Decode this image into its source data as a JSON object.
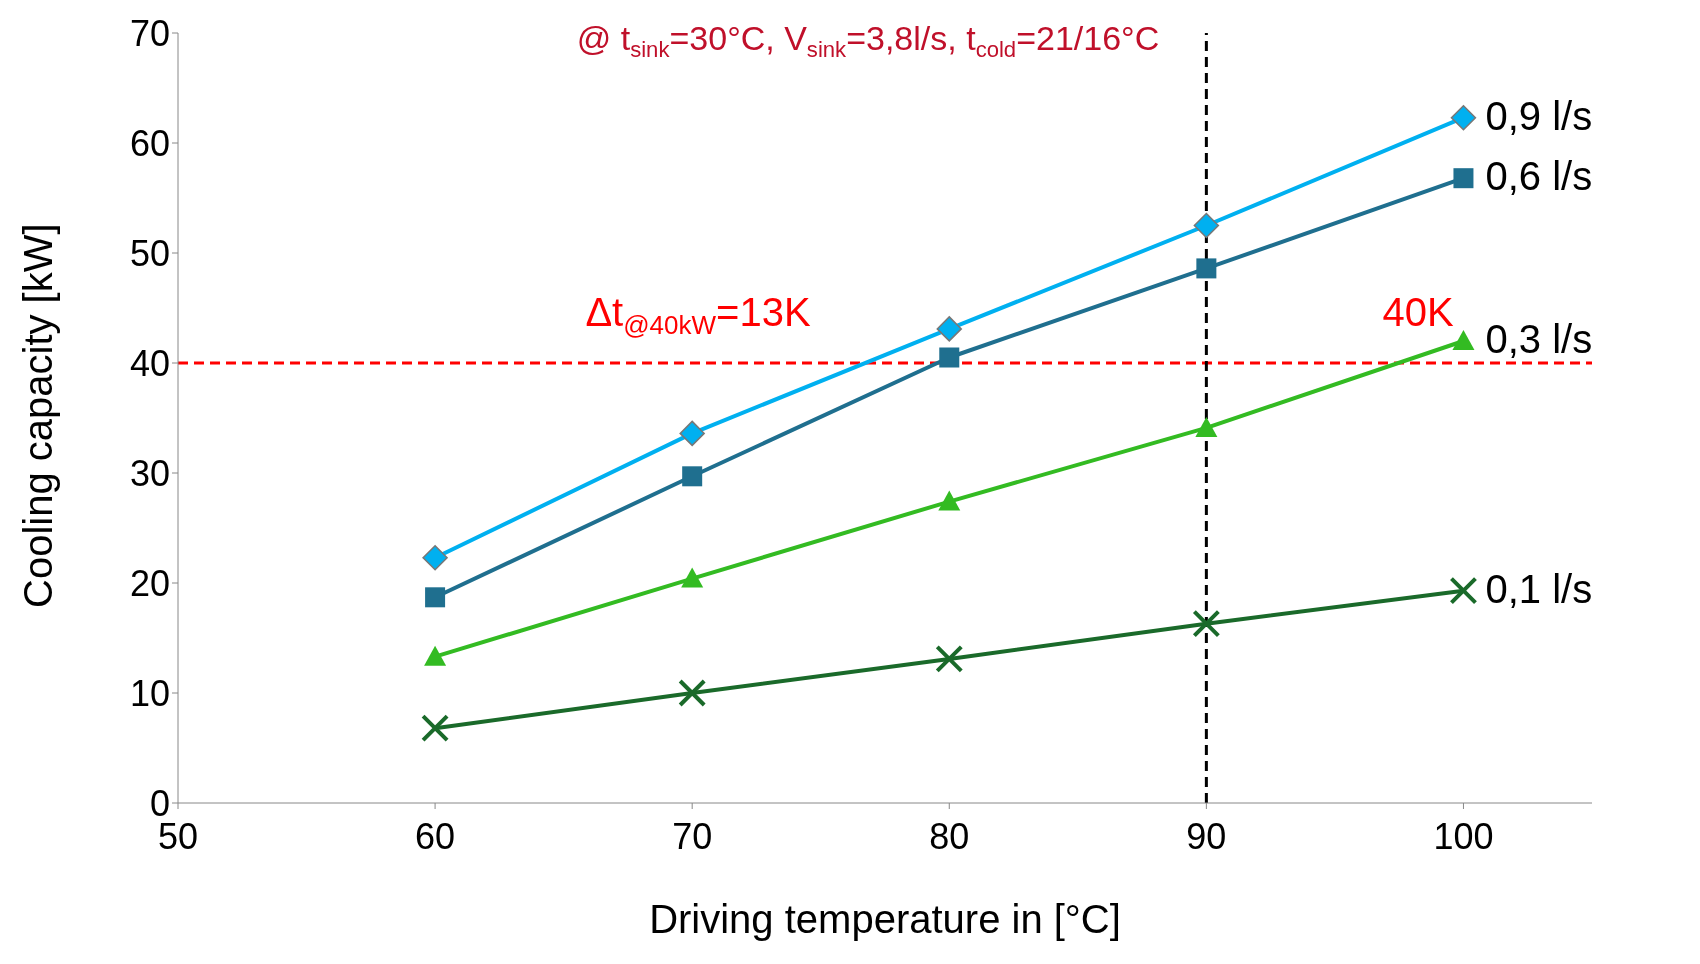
{
  "chart_data": {
    "type": "line",
    "subtitle": "@ t$_{sink}$=30°C, V$_{sink}$=3,8l/s,  t$_{cold}$=21/16°C",
    "xlabel": "Driving temperature in [°C]",
    "ylabel": "Cooling capacity [kW]",
    "x": [
      60,
      70,
      80,
      90,
      100
    ],
    "series": [
      {
        "name": "0,9 l/s",
        "color": "#00b0f0",
        "marker": "diamond",
        "values": [
          22.3,
          33.6,
          43.1,
          52.5,
          62.3
        ]
      },
      {
        "name": "0,6 l/s",
        "color": "#1f6f8f",
        "marker": "square",
        "values": [
          18.7,
          29.7,
          40.5,
          48.6,
          56.8
        ]
      },
      {
        "name": "0,3 l/s",
        "color": "#33bb22",
        "marker": "triangle",
        "values": [
          13.3,
          20.4,
          27.4,
          34.1,
          42.0
        ]
      },
      {
        "name": "0,1 l/s",
        "color": "#1a6a2a",
        "marker": "cross",
        "values": [
          6.8,
          10.0,
          13.1,
          16.3,
          19.3
        ]
      }
    ],
    "xlim": [
      50,
      105
    ],
    "xticks": [
      50,
      60,
      70,
      80,
      90,
      100
    ],
    "ylim": [
      0,
      70
    ],
    "yticks": [
      0,
      10,
      20,
      30,
      40,
      50,
      60,
      70
    ],
    "grid": false,
    "ref_lines": [
      {
        "axis": "y",
        "value": 40,
        "color": "#ff0000",
        "line_style": "dashed"
      },
      {
        "axis": "x",
        "value": 90,
        "color": "#000000",
        "line_style": "dashed"
      }
    ],
    "annotations": [
      "Δt$_{@40kW}$=13K",
      "40K"
    ]
  }
}
